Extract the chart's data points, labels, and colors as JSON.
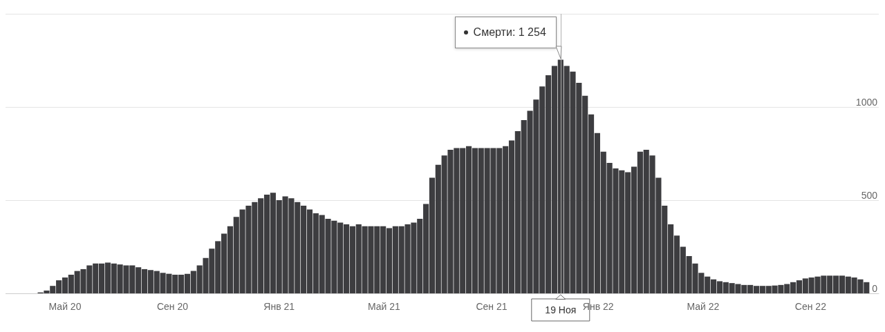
{
  "chart_data": {
    "type": "bar",
    "color": "#3d3d40",
    "x": [
      "2020-04-03",
      "2020-04-10",
      "2020-04-17",
      "2020-04-24",
      "2020-05-01",
      "2020-05-08",
      "2020-05-15",
      "2020-05-22",
      "2020-05-29",
      "2020-06-05",
      "2020-06-12",
      "2020-06-19",
      "2020-06-26",
      "2020-07-03",
      "2020-07-10",
      "2020-07-17",
      "2020-07-24",
      "2020-07-31",
      "2020-08-07",
      "2020-08-14",
      "2020-08-21",
      "2020-08-28",
      "2020-09-04",
      "2020-09-11",
      "2020-09-18",
      "2020-09-25",
      "2020-10-02",
      "2020-10-09",
      "2020-10-16",
      "2020-10-23",
      "2020-10-30",
      "2020-11-06",
      "2020-11-13",
      "2020-11-20",
      "2020-11-27",
      "2020-12-04",
      "2020-12-11",
      "2020-12-18",
      "2020-12-25",
      "2021-01-01",
      "2021-01-08",
      "2021-01-15",
      "2021-01-22",
      "2021-01-29",
      "2021-02-05",
      "2021-02-12",
      "2021-02-19",
      "2021-02-26",
      "2021-03-05",
      "2021-03-12",
      "2021-03-19",
      "2021-03-26",
      "2021-04-02",
      "2021-04-09",
      "2021-04-16",
      "2021-04-23",
      "2021-04-30",
      "2021-05-07",
      "2021-05-14",
      "2021-05-21",
      "2021-05-28",
      "2021-06-04",
      "2021-06-11",
      "2021-06-18",
      "2021-06-25",
      "2021-07-02",
      "2021-07-09",
      "2021-07-16",
      "2021-07-23",
      "2021-07-30",
      "2021-08-06",
      "2021-08-13",
      "2021-08-20",
      "2021-08-27",
      "2021-09-03",
      "2021-09-10",
      "2021-09-17",
      "2021-09-24",
      "2021-10-01",
      "2021-10-08",
      "2021-10-15",
      "2021-10-22",
      "2021-10-29",
      "2021-11-05",
      "2021-11-12",
      "2021-11-19",
      "2021-11-26",
      "2021-12-03",
      "2021-12-10",
      "2021-12-17",
      "2021-12-24",
      "2021-12-31",
      "2022-01-07",
      "2022-01-14",
      "2022-01-21",
      "2022-01-28",
      "2022-02-04",
      "2022-02-11",
      "2022-02-18",
      "2022-02-25",
      "2022-03-04",
      "2022-03-11",
      "2022-03-18",
      "2022-03-25",
      "2022-04-01",
      "2022-04-08",
      "2022-04-15",
      "2022-04-22",
      "2022-04-29",
      "2022-05-06",
      "2022-05-13",
      "2022-05-20",
      "2022-05-27",
      "2022-06-03",
      "2022-06-10",
      "2022-06-17",
      "2022-06-24",
      "2022-07-01",
      "2022-07-08",
      "2022-07-15",
      "2022-07-22",
      "2022-07-29",
      "2022-08-05",
      "2022-08-12",
      "2022-08-19",
      "2022-08-26",
      "2022-09-02",
      "2022-09-09",
      "2022-09-16",
      "2022-09-23",
      "2022-09-30",
      "2022-10-07",
      "2022-10-14",
      "2022-10-21",
      "2022-10-28",
      "2022-11-04"
    ],
    "values": [
      5,
      15,
      40,
      70,
      85,
      100,
      120,
      130,
      150,
      160,
      160,
      165,
      160,
      155,
      150,
      150,
      140,
      130,
      125,
      120,
      110,
      105,
      100,
      100,
      105,
      120,
      150,
      190,
      240,
      280,
      320,
      360,
      410,
      450,
      470,
      490,
      510,
      530,
      540,
      500,
      520,
      510,
      490,
      470,
      450,
      430,
      420,
      400,
      390,
      380,
      370,
      360,
      370,
      360,
      360,
      360,
      360,
      350,
      360,
      360,
      370,
      380,
      400,
      480,
      620,
      690,
      740,
      770,
      780,
      780,
      790,
      780,
      780,
      780,
      780,
      780,
      790,
      820,
      870,
      930,
      980,
      1040,
      1110,
      1170,
      1220,
      1254,
      1220,
      1190,
      1130,
      1060,
      960,
      860,
      760,
      700,
      670,
      660,
      650,
      680,
      760,
      770,
      740,
      620,
      470,
      370,
      310,
      250,
      200,
      160,
      110,
      90,
      75,
      65,
      60,
      55,
      50,
      45,
      45,
      40,
      40,
      40,
      42,
      45,
      50,
      60,
      70,
      80,
      85,
      90,
      95,
      95,
      95,
      95,
      90,
      85,
      75,
      60
    ],
    "xlim": [
      "2020-02-23",
      "2022-11-18"
    ],
    "xticks": [
      {
        "value": "2020-05-01",
        "label": "Май 20"
      },
      {
        "value": "2020-09-01",
        "label": "Сен 20"
      },
      {
        "value": "2021-01-01",
        "label": "Янв 21"
      },
      {
        "value": "2021-05-01",
        "label": "Май 21"
      },
      {
        "value": "2021-09-01",
        "label": "Сен 21"
      },
      {
        "value": "2022-01-01",
        "label": "Янв 22"
      },
      {
        "value": "2022-05-01",
        "label": "Май 22"
      },
      {
        "value": "2022-09-01",
        "label": "Сен 22"
      }
    ],
    "ylim": [
      0,
      1500
    ],
    "yticks": [
      0,
      500,
      1000,
      {
        "value": 1500,
        "label": null
      }
    ],
    "grid": "y",
    "ref_lines": [
      {
        "axis": "x",
        "value": "2021-11-19",
        "label": "19 Ноя",
        "color": "#b0b0b0"
      }
    ],
    "annotations": [
      {
        "text": "Смерти: 1 254",
        "x": "2021-11-19",
        "y": 1254
      }
    ]
  }
}
